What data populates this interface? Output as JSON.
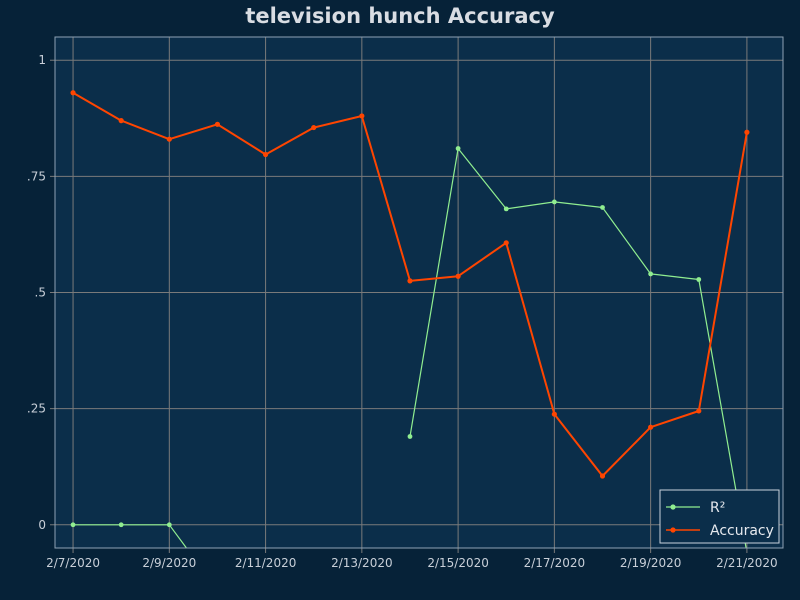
{
  "colors": {
    "background": "#062238",
    "plot_background": "#0b2e4a",
    "grid": "#7a7a7a",
    "plot_border": "#8fa3b5",
    "r2": "#90ee90",
    "accuracy": "#ff4500"
  },
  "chart_data": {
    "type": "line",
    "title": "television hunch Accuracy",
    "xlabel": "",
    "ylabel": "",
    "x": [
      "2020-02-07",
      "2020-02-08",
      "2020-02-09",
      "2020-02-10",
      "2020-02-11",
      "2020-02-12",
      "2020-02-13",
      "2020-02-14",
      "2020-02-15",
      "2020-02-16",
      "2020-02-17",
      "2020-02-18",
      "2020-02-19",
      "2020-02-20",
      "2020-02-21"
    ],
    "x_tick_labels": [
      "2/7/2020",
      "2/9/2020",
      "2/11/2020",
      "2/13/2020",
      "2/15/2020",
      "2/17/2020",
      "2/19/2020",
      "2/21/2020"
    ],
    "y_tick_values": [
      0,
      0.25,
      0.5,
      0.75,
      1
    ],
    "y_tick_labels": [
      "0",
      ".25",
      ".5",
      ".75",
      "1"
    ],
    "ylim": [
      -0.05,
      1.05
    ],
    "xlim": [
      "2020-02-06T15:00",
      "2020-02-21T18:00"
    ],
    "grid": true,
    "legend_position": "bottom-right",
    "series": [
      {
        "name": "R²",
        "color": "#90ee90",
        "values": [
          0,
          0,
          0,
          -0.14,
          null,
          null,
          null,
          0.19,
          0.81,
          0.68,
          0.695,
          0.683,
          0.54,
          0.528,
          -0.06
        ]
      },
      {
        "name": "Accuracy",
        "color": "#ff4500",
        "values": [
          0.93,
          0.87,
          0.83,
          0.862,
          0.797,
          0.855,
          0.88,
          0.525,
          0.535,
          0.607,
          0.238,
          0.105,
          0.21,
          0.245,
          0.845
        ]
      }
    ]
  }
}
